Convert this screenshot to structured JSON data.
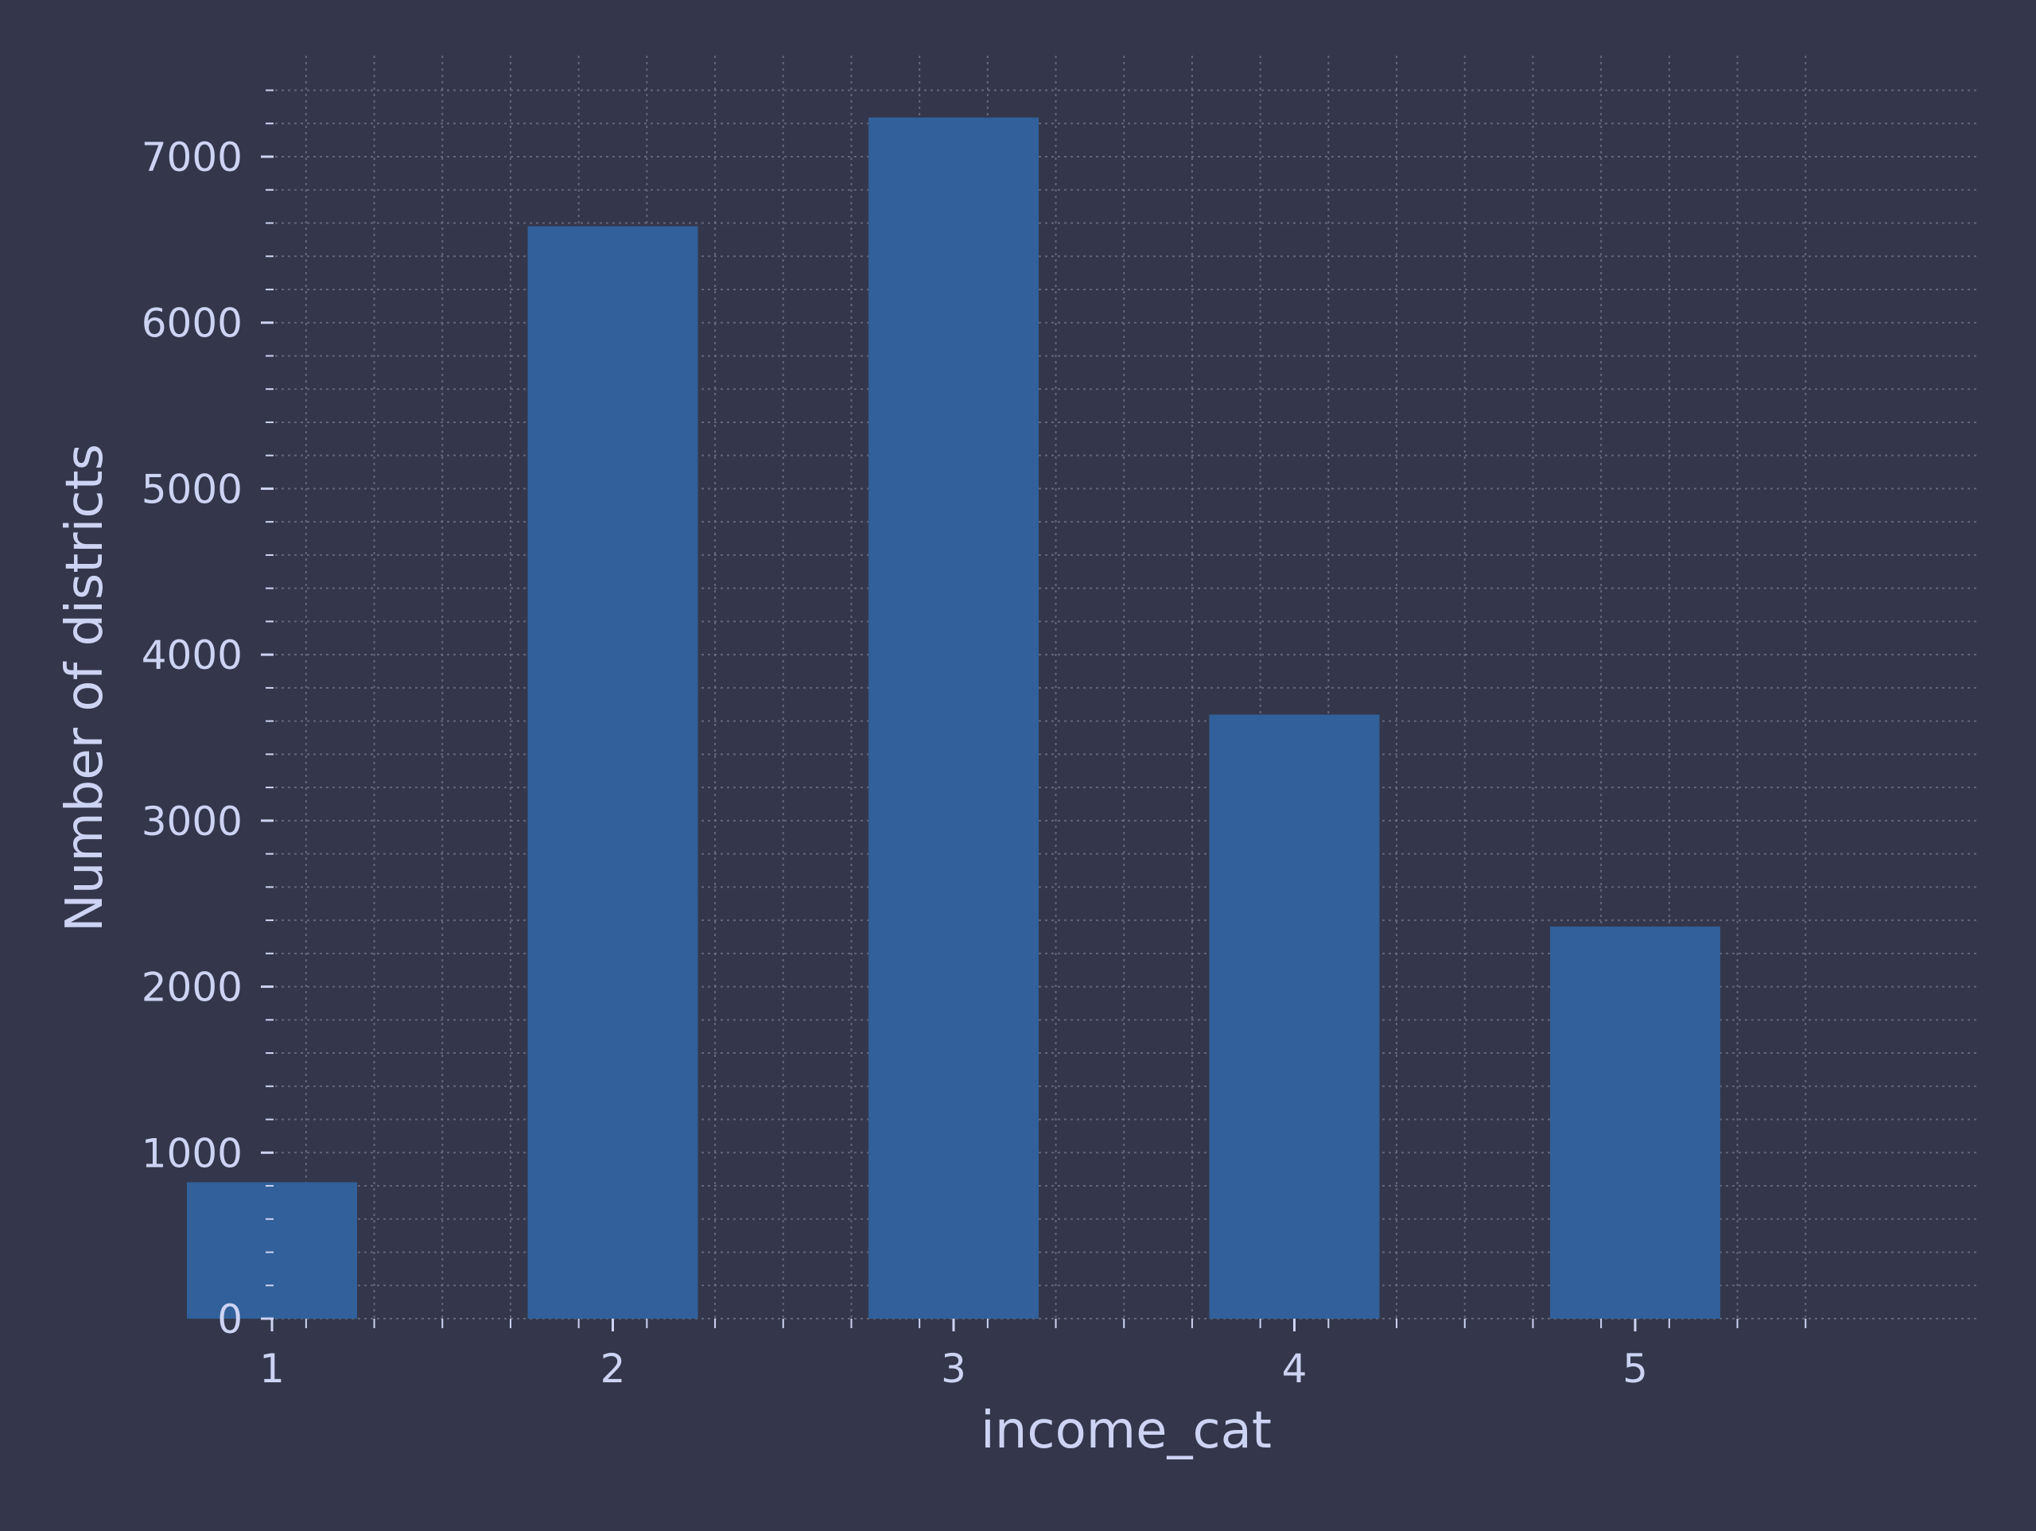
{
  "chart_data": {
    "type": "bar",
    "categories": [
      "1",
      "2",
      "3",
      "4",
      "5"
    ],
    "values": [
      822,
      6581,
      7236,
      3639,
      2362
    ],
    "title": "",
    "xlabel": "income_cat",
    "ylabel": "Number of districts",
    "ylim": [
      0,
      7550
    ],
    "y_ticks": [
      0,
      1000,
      2000,
      3000,
      4000,
      5000,
      6000,
      7000
    ],
    "y_tick_labels": [
      "0",
      "1000",
      "2000",
      "3000",
      "4000",
      "5000",
      "6000",
      "7000"
    ],
    "y_minor_step": 200,
    "x_minor_step": 0.2,
    "xlim": [
      0.5,
      5.5
    ],
    "grid": true,
    "legend": "none",
    "colors": {
      "background": "#34374b",
      "bar": "#31609a",
      "text": "#cdd3f3",
      "axis": "#cdd3f3",
      "grid": "#6f7386"
    }
  }
}
